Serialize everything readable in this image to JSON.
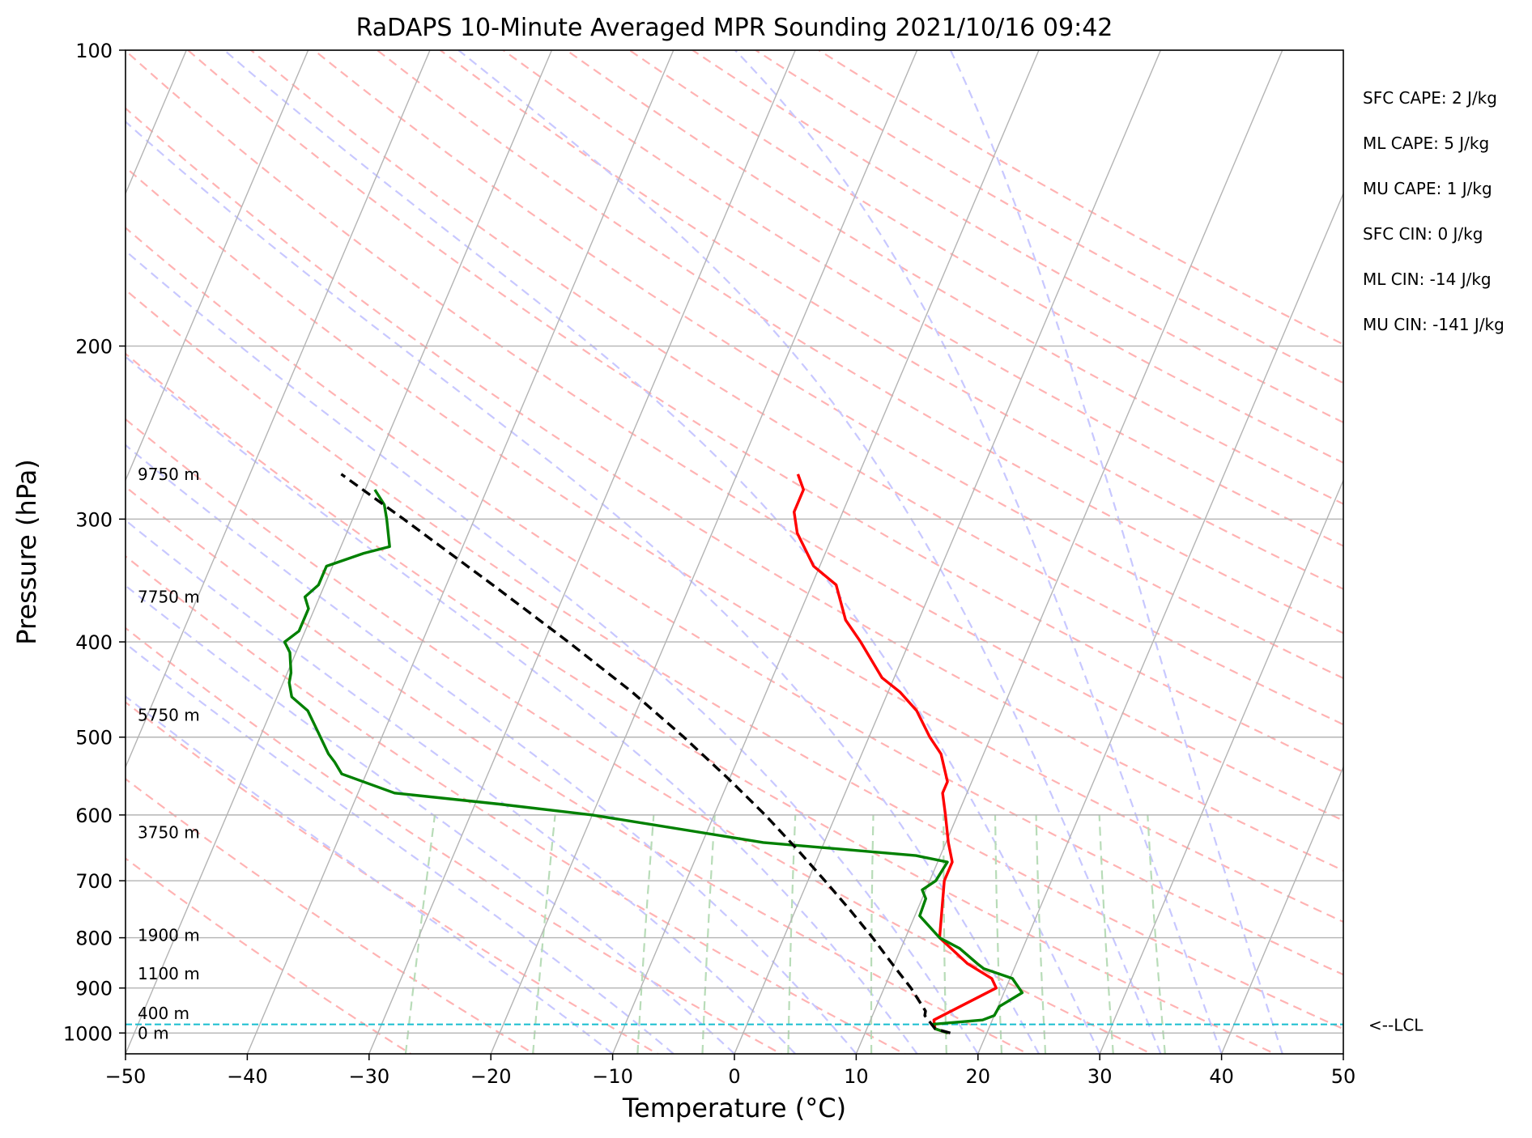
{
  "chart_data": {
    "type": "line",
    "subtype": "skew-t log-p",
    "title": "RaDAPS 10-Minute Averaged MPR Sounding 2021/10/16 09:42",
    "xlabel": "Temperature (°C)",
    "ylabel": "Pressure (hPa)",
    "xlim": [
      -50,
      50
    ],
    "ylim": [
      1050,
      100
    ],
    "y_scale": "log",
    "skew": 35,
    "x_ticks": [
      -50,
      -40,
      -30,
      -20,
      -10,
      0,
      10,
      20,
      30,
      40,
      50
    ],
    "x_tick_labels": [
      "−50",
      "−40",
      "−30",
      "−20",
      "−10",
      "0",
      "10",
      "20",
      "30",
      "40",
      "50"
    ],
    "y_ticks": [
      100,
      200,
      300,
      400,
      500,
      600,
      700,
      800,
      900,
      1000
    ],
    "y_tick_labels": [
      "100",
      "200",
      "300",
      "400",
      "500",
      "600",
      "700",
      "800",
      "900",
      "1000"
    ],
    "grid": true,
    "series": [
      {
        "key": "temperature",
        "color": "#ff0000",
        "points": [
          [
            1000,
            16.8
          ],
          [
            990,
            15.6
          ],
          [
            970,
            15.2
          ],
          [
            900,
            19.2
          ],
          [
            880,
            18.5
          ],
          [
            850,
            16.0
          ],
          [
            800,
            12.8
          ],
          [
            700,
            11.2
          ],
          [
            670,
            11.2
          ],
          [
            640,
            10.2
          ],
          [
            600,
            9.0
          ],
          [
            570,
            8.0
          ],
          [
            555,
            8.0
          ],
          [
            520,
            6.5
          ],
          [
            500,
            5.0
          ],
          [
            470,
            3.0
          ],
          [
            450,
            1.0
          ],
          [
            435,
            -1.0
          ],
          [
            400,
            -4.0
          ],
          [
            380,
            -6.0
          ],
          [
            350,
            -8.0
          ],
          [
            335,
            -10.5
          ],
          [
            310,
            -13.0
          ],
          [
            295,
            -14.0
          ],
          [
            280,
            -14.0
          ],
          [
            270,
            -15.0
          ]
        ]
      },
      {
        "key": "dewpoint",
        "color": "#008000",
        "points": [
          [
            1000,
            16.8
          ],
          [
            990,
            15.6
          ],
          [
            980,
            15.2
          ],
          [
            970,
            19.2
          ],
          [
            960,
            20.0
          ],
          [
            940,
            20.1
          ],
          [
            910,
            21.5
          ],
          [
            880,
            20.2
          ],
          [
            860,
            17.5
          ],
          [
            850,
            16.8
          ],
          [
            820,
            14.8
          ],
          [
            800,
            12.8
          ],
          [
            760,
            10.4
          ],
          [
            730,
            10.3
          ],
          [
            715,
            9.7
          ],
          [
            700,
            10.5
          ],
          [
            670,
            10.8
          ],
          [
            660,
            8.0
          ],
          [
            640,
            -5.0
          ],
          [
            600,
            -20.0
          ],
          [
            585,
            -28.0
          ],
          [
            570,
            -37.0
          ],
          [
            545,
            -42.0
          ],
          [
            530,
            -43.0
          ],
          [
            520,
            -43.8
          ],
          [
            485,
            -46.0
          ],
          [
            470,
            -47.0
          ],
          [
            455,
            -48.8
          ],
          [
            440,
            -49.5
          ],
          [
            430,
            -49.7
          ],
          [
            410,
            -50.5
          ],
          [
            400,
            -51.3
          ],
          [
            390,
            -50.5
          ],
          [
            370,
            -50.5
          ],
          [
            360,
            -51.2
          ],
          [
            350,
            -50.5
          ],
          [
            335,
            -50.5
          ],
          [
            325,
            -47.9
          ],
          [
            320,
            -46.0
          ],
          [
            300,
            -47.2
          ],
          [
            290,
            -47.9
          ],
          [
            280,
            -49.2
          ]
        ]
      },
      {
        "key": "parcel",
        "color": "#000000",
        "style": "dashed",
        "points": [
          [
            1000,
            17.0
          ],
          [
            990,
            15.6
          ],
          [
            960,
            14.3
          ],
          [
            950,
            14.2
          ],
          [
            900,
            12.2
          ],
          [
            850,
            9.8
          ],
          [
            800,
            7.3
          ],
          [
            750,
            4.5
          ],
          [
            700,
            1.4
          ],
          [
            650,
            -2.0
          ],
          [
            600,
            -5.8
          ],
          [
            550,
            -10.2
          ],
          [
            500,
            -15.2
          ],
          [
            450,
            -21.0
          ],
          [
            400,
            -28.0
          ],
          [
            350,
            -36.2
          ],
          [
            300,
            -45.8
          ],
          [
            270,
            -52.5
          ]
        ]
      }
    ],
    "height_labels": [
      {
        "p": 270,
        "text": "9750 m"
      },
      {
        "p": 360,
        "text": "7750 m"
      },
      {
        "p": 475,
        "text": "5750 m"
      },
      {
        "p": 625,
        "text": "3750 m"
      },
      {
        "p": 795,
        "text": "1900 m"
      },
      {
        "p": 870,
        "text": "1100 m"
      },
      {
        "p": 955,
        "text": "400 m"
      },
      {
        "p": 1000,
        "text": "0 m"
      }
    ],
    "lcl": {
      "p": 980,
      "label": "<--LCL"
    },
    "indices": [
      "SFC CAPE: 2 J/kg",
      "ML CAPE: 5 J/kg",
      "MU CAPE: 1 J/kg",
      "SFC CIN: 0 J/kg",
      "ML CIN: -14 J/kg",
      "MU CIN: -141 J/kg"
    ],
    "colors": {
      "isotherm": "#b4b4b4",
      "dry_adiabat": "#ffb3b3",
      "moist_adiabat": "#c8c8ff",
      "mixing_ratio": "#b8dcb8",
      "lcl_line": "#17becf"
    }
  }
}
